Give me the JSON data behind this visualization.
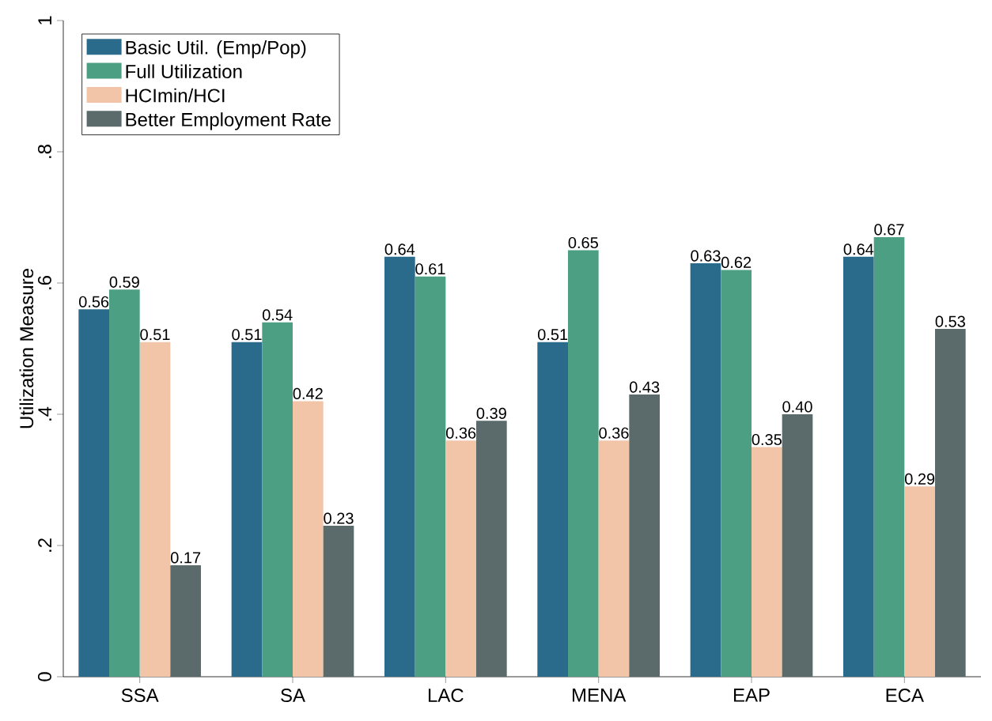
{
  "chart_data": {
    "type": "bar",
    "ylabel": "Utilization Measure",
    "categories": [
      "SSA",
      "SA",
      "LAC",
      "MENA",
      "EAP",
      "ECA"
    ],
    "series": [
      {
        "name": "Basic Util. (Emp/Pop)",
        "color": "#2a6a8a",
        "values": [
          0.56,
          0.51,
          0.64,
          0.51,
          0.63,
          0.64
        ],
        "value_labels": [
          "0.56",
          "0.51",
          "0.64",
          "0.51",
          "0.63",
          "0.64"
        ]
      },
      {
        "name": "Full Utilization",
        "color": "#4d9f84",
        "values": [
          0.59,
          0.54,
          0.61,
          0.65,
          0.62,
          0.67
        ],
        "value_labels": [
          "0.59",
          "0.54",
          "0.61",
          "0.65",
          "0.62",
          "0.67"
        ]
      },
      {
        "name": "HCImin/HCI",
        "color": "#f2c4a8",
        "values": [
          0.51,
          0.42,
          0.36,
          0.36,
          0.35,
          0.29
        ],
        "value_labels": [
          "0.51",
          "0.42",
          "0.36",
          "0.36",
          "0.35",
          "0.29"
        ]
      },
      {
        "name": "Better Employment Rate",
        "color": "#5b6b6b",
        "values": [
          0.17,
          0.23,
          0.39,
          0.43,
          0.4,
          0.53
        ],
        "value_labels": [
          "0.17",
          "0.23",
          "0.39",
          "0.43",
          "0.40",
          "0.53"
        ]
      }
    ],
    "ylim": [
      0,
      1
    ],
    "yticks": [
      0,
      {
        "value": 0.2,
        "label": ".2"
      },
      {
        "value": 0.4,
        "label": ".4"
      },
      {
        "value": 0.6,
        "label": ".6"
      },
      {
        "value": 0.8,
        "label": ".8"
      },
      1
    ],
    "grid": false,
    "legend": "top left"
  }
}
